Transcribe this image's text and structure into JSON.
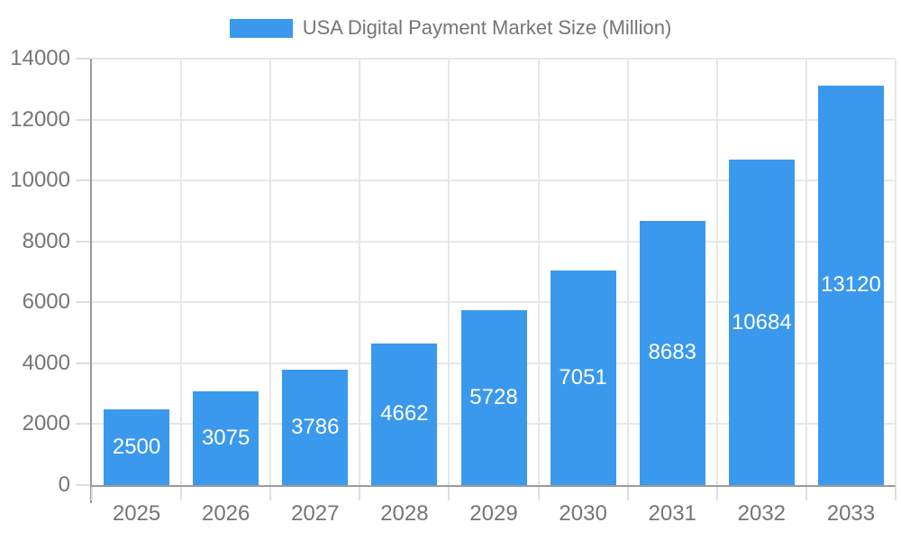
{
  "legend": {
    "label": "USA Digital Payment Market Size (Million)"
  },
  "chart_data": {
    "type": "bar",
    "title": "",
    "series_name": "USA Digital Payment Market Size (Million)",
    "categories": [
      "2025",
      "2026",
      "2027",
      "2028",
      "2029",
      "2030",
      "2031",
      "2032",
      "2033"
    ],
    "values": [
      2500,
      3075,
      3786,
      4662,
      5728,
      7051,
      8683,
      10684,
      13120
    ],
    "xlabel": "",
    "ylabel": "",
    "ylim": [
      0,
      14000
    ],
    "yticks": [
      0,
      2000,
      4000,
      6000,
      8000,
      10000,
      12000,
      14000
    ],
    "grid": true,
    "legend_position": "top-center",
    "value_labels": "inside-center"
  },
  "colors": {
    "bar": "#3a99ec",
    "axis_line": "#9b9b9b",
    "gridline": "#e7e7e7",
    "tick_mark": "#dedede",
    "axis_text": "#757575",
    "value_label_text": "#ffffff",
    "background": "#ffffff"
  }
}
